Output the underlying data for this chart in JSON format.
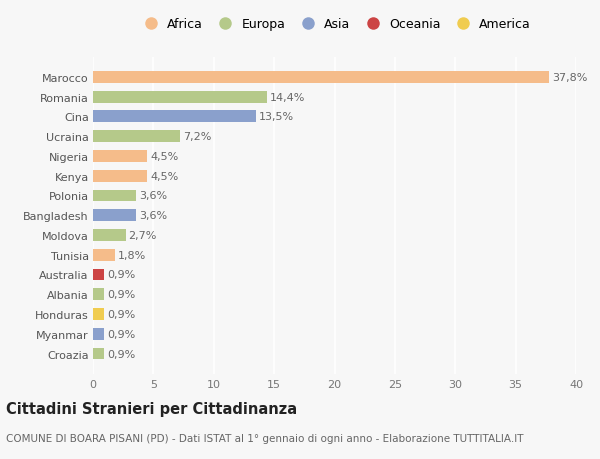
{
  "countries": [
    "Marocco",
    "Romania",
    "Cina",
    "Ucraina",
    "Nigeria",
    "Kenya",
    "Polonia",
    "Bangladesh",
    "Moldova",
    "Tunisia",
    "Australia",
    "Albania",
    "Honduras",
    "Myanmar",
    "Croazia"
  ],
  "values": [
    37.8,
    14.4,
    13.5,
    7.2,
    4.5,
    4.5,
    3.6,
    3.6,
    2.7,
    1.8,
    0.9,
    0.9,
    0.9,
    0.9,
    0.9
  ],
  "labels": [
    "37,8%",
    "14,4%",
    "13,5%",
    "7,2%",
    "4,5%",
    "4,5%",
    "3,6%",
    "3,6%",
    "2,7%",
    "1,8%",
    "0,9%",
    "0,9%",
    "0,9%",
    "0,9%",
    "0,9%"
  ],
  "continents": [
    "Africa",
    "Europa",
    "Asia",
    "Europa",
    "Africa",
    "Africa",
    "Europa",
    "Asia",
    "Europa",
    "Africa",
    "Oceania",
    "Europa",
    "America",
    "Asia",
    "Europa"
  ],
  "colors": {
    "Africa": "#F5BC8A",
    "Europa": "#B5C98A",
    "Asia": "#8AA0CC",
    "Oceania": "#CC4444",
    "America": "#F0CC50"
  },
  "legend_order": [
    "Africa",
    "Europa",
    "Asia",
    "Oceania",
    "America"
  ],
  "xlim": [
    0,
    40
  ],
  "xticks": [
    0,
    5,
    10,
    15,
    20,
    25,
    30,
    35,
    40
  ],
  "background_color": "#f7f7f7",
  "title": "Cittadini Stranieri per Cittadinanza",
  "subtitle": "COMUNE DI BOARA PISANI (PD) - Dati ISTAT al 1° gennaio di ogni anno - Elaborazione TUTTITALIA.IT",
  "bar_height": 0.6,
  "grid_color": "#ffffff",
  "label_fontsize": 8.0,
  "tick_fontsize": 8.0,
  "legend_fontsize": 9.0,
  "title_fontsize": 10.5,
  "subtitle_fontsize": 7.5
}
